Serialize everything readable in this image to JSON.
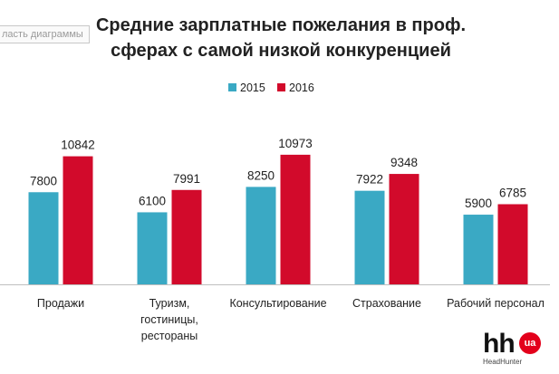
{
  "tooltip": "ласть диаграммы",
  "chart_data": {
    "type": "bar",
    "title_line1": "Средние зарплатные пожелания в проф.",
    "title_line2": "сферах с самой низкой конкуренцией",
    "categories": [
      "Продажи",
      "Туризм, гостиницы, рестораны",
      "Консультирование",
      "Страхование",
      "Рабочий персонал"
    ],
    "category_lines": [
      [
        "Продажи"
      ],
      [
        "Туризм,",
        "гостиницы,",
        "рестораны"
      ],
      [
        "Консультирование"
      ],
      [
        "Страхование"
      ],
      [
        "Рабочий персонал"
      ]
    ],
    "series": [
      {
        "name": "2015",
        "color": "#3aa9c4",
        "values": [
          7800,
          6100,
          8250,
          7922,
          5900
        ]
      },
      {
        "name": "2016",
        "color": "#d20a2b",
        "values": [
          10842,
          7991,
          10973,
          9348,
          6785
        ]
      }
    ],
    "ylim": [
      0,
      12000
    ],
    "legend_position": "top-center",
    "grid": false
  },
  "logo": {
    "mark": "hh",
    "badge": "ua",
    "name": "HeadHunter"
  }
}
